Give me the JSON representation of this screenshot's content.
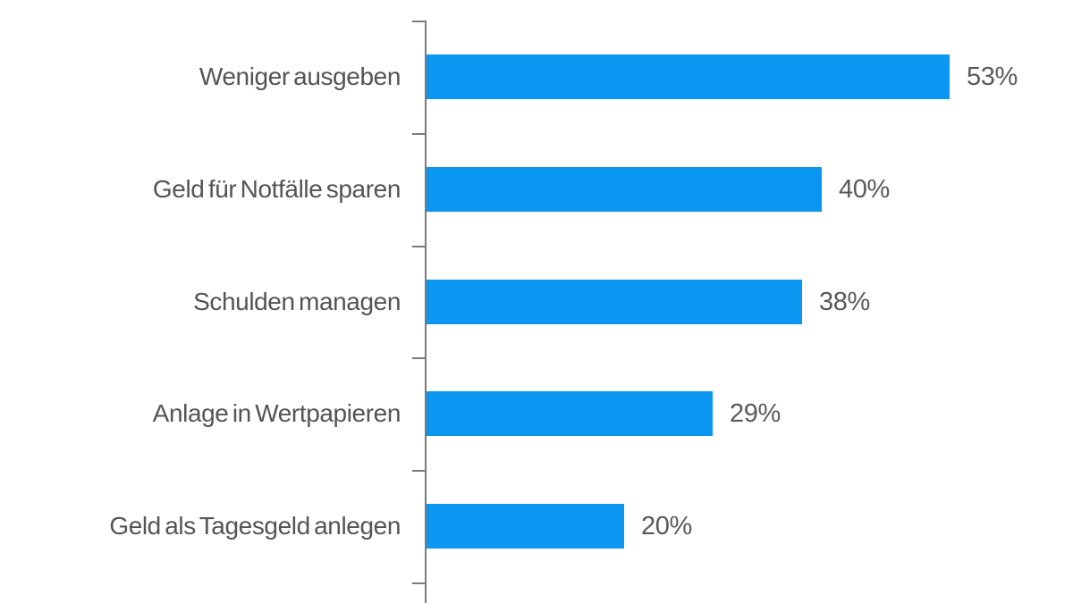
{
  "chart_data": {
    "type": "bar",
    "orientation": "horizontal",
    "title": "",
    "xlabel": "",
    "ylabel": "",
    "categories": [
      "Weniger ausgeben",
      "Geld für Notfälle sparen",
      "Schulden managen",
      "Anlage in Wertpapieren",
      "Geld als Tagesgeld anlegen"
    ],
    "values": [
      53,
      40,
      38,
      29,
      20
    ],
    "value_labels": [
      "53%",
      "40%",
      "38%",
      "29%",
      "20%"
    ],
    "xlim": [
      0,
      60
    ],
    "grid": false,
    "legend": "none",
    "colors": {
      "bar": "#0b96f2",
      "category_text": "#545454",
      "value_text": "#5a5a5a",
      "axis": "#7a7a7a",
      "background": "#ffffff"
    }
  }
}
